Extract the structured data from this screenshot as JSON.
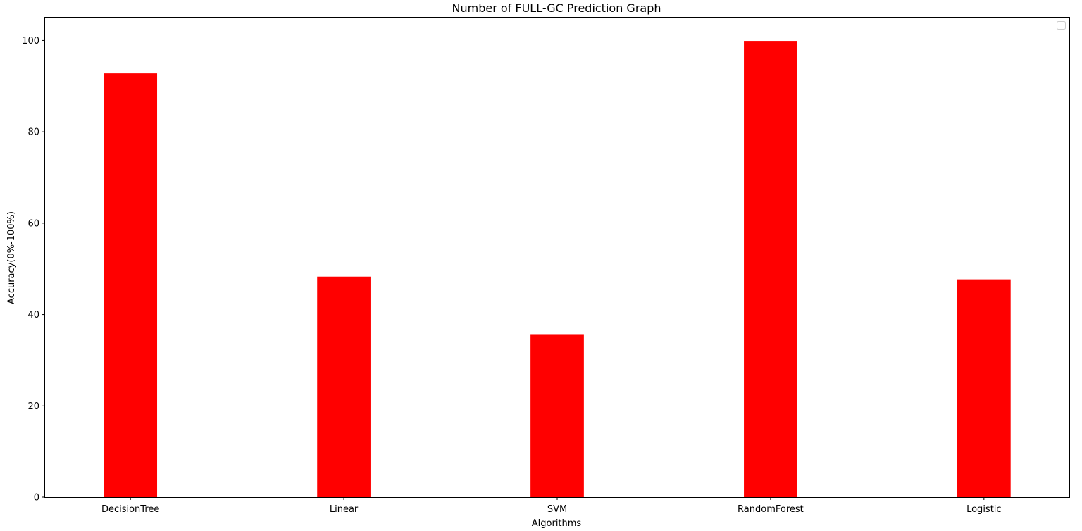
{
  "chart_data": {
    "type": "bar",
    "title": "Number of FULL-GC Prediction Graph",
    "xlabel": "Algorithms",
    "ylabel": "Accuracy(0%-100%)",
    "categories": [
      "DecisionTree",
      "Linear",
      "SVM",
      "RandomForest",
      "Logistic"
    ],
    "values": [
      92.8,
      48.3,
      35.7,
      99.9,
      47.7
    ],
    "ylim": [
      0,
      105
    ],
    "yticks": [
      0,
      20,
      40,
      60,
      80,
      100
    ],
    "grid": false,
    "legend": "top-right, empty",
    "bar_color": "#ff0000"
  }
}
